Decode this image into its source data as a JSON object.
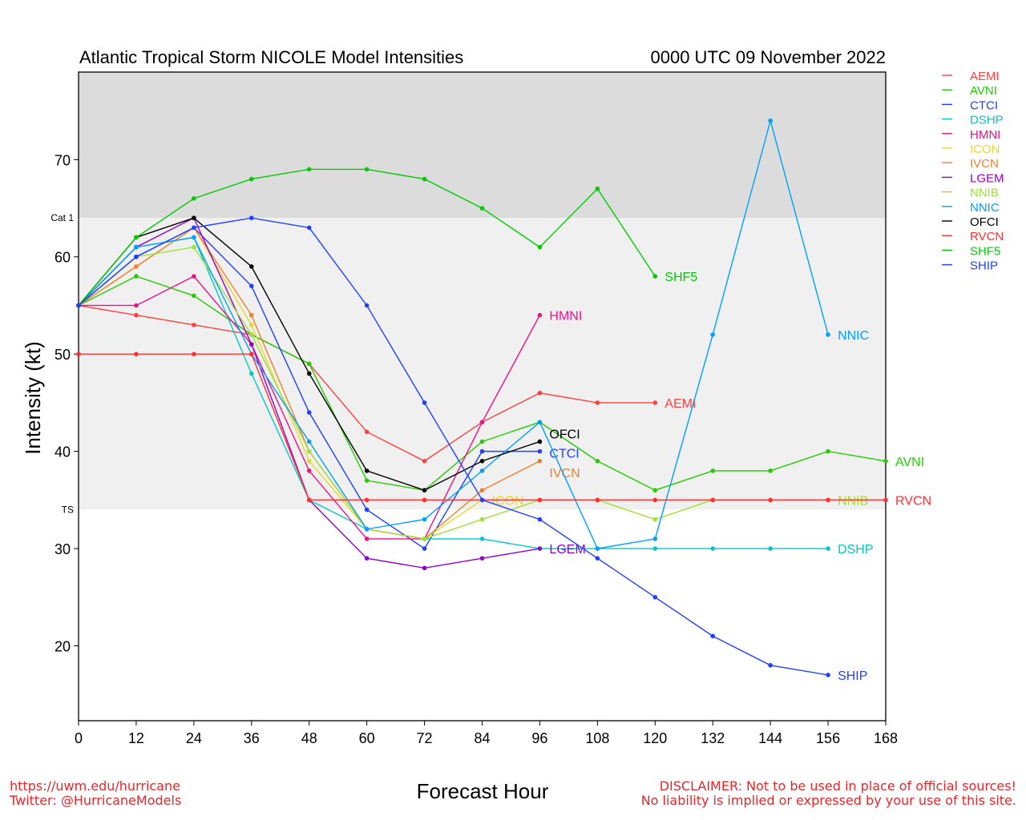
{
  "chart_data": {
    "type": "line",
    "title": "Atlantic Tropical Storm NICOLE Model Intensities",
    "subtitle": "0000 UTC 09 November 2022",
    "xlabel": "Forecast Hour",
    "ylabel": "Intensity (kt)",
    "xlim": [
      0,
      168
    ],
    "ylim": [
      12.3,
      79
    ],
    "xticks": [
      0,
      12,
      24,
      36,
      48,
      60,
      72,
      84,
      96,
      108,
      120,
      132,
      144,
      156,
      168
    ],
    "yticks": [
      20,
      30,
      40,
      50,
      60,
      70
    ],
    "bands": [
      {
        "label": "Cat 1",
        "from": 64,
        "to": 79,
        "color": "#dcdcdc"
      },
      {
        "label": "TS",
        "from": 34,
        "to": 64,
        "color": "#f0f0f0"
      }
    ],
    "legend_position": "right",
    "series": [
      {
        "name": "AEMI",
        "color": "#ff4040",
        "x": [
          0,
          12,
          24,
          36,
          48,
          60,
          72,
          84,
          96,
          108,
          120
        ],
        "y": [
          55,
          54,
          53,
          52,
          49,
          42,
          39,
          43,
          46,
          45,
          45
        ]
      },
      {
        "name": "AVNI",
        "color": "#22cc00",
        "x": [
          0,
          12,
          24,
          36,
          48,
          60,
          72,
          84,
          96,
          108,
          120,
          132,
          144,
          156,
          168
        ],
        "y": [
          55,
          58,
          56,
          52,
          49,
          37,
          36,
          41,
          43,
          39,
          36,
          38,
          38,
          40,
          39
        ]
      },
      {
        "name": "CTCI",
        "color": "#2040ff",
        "x": [
          0,
          12,
          24,
          36,
          48,
          60,
          72,
          84,
          96
        ],
        "y": [
          55,
          60,
          63,
          57,
          44,
          34,
          30,
          40,
          40
        ]
      },
      {
        "name": "DSHP",
        "color": "#00c8c8",
        "x": [
          0,
          12,
          24,
          36,
          48,
          60,
          72,
          84,
          96,
          108,
          120,
          132,
          144,
          156
        ],
        "y": [
          55,
          61,
          62,
          48,
          35,
          32,
          31,
          31,
          30,
          30,
          30,
          30,
          30,
          30
        ]
      },
      {
        "name": "HMNI",
        "color": "#ee1188",
        "x": [
          0,
          12,
          24,
          36,
          48,
          60,
          72,
          84,
          96
        ],
        "y": [
          55,
          55,
          58,
          51,
          38,
          31,
          31,
          43,
          54
        ]
      },
      {
        "name": "ICON",
        "color": "#e8d830",
        "x": [
          0,
          12,
          24,
          36,
          48,
          60,
          72,
          84
        ],
        "y": [
          55,
          59,
          63,
          53,
          39,
          32,
          31,
          35
        ]
      },
      {
        "name": "IVCN",
        "color": "#f08030",
        "x": [
          0,
          12,
          24,
          36,
          48,
          60,
          72,
          84,
          96
        ],
        "y": [
          55,
          59,
          63,
          54,
          40,
          32,
          31,
          36,
          39
        ]
      },
      {
        "name": "LGEM",
        "color": "#9900cc",
        "x": [
          0,
          12,
          24,
          36,
          48,
          60,
          72,
          84,
          96
        ],
        "y": [
          55,
          61,
          64,
          51,
          35,
          29,
          28,
          29,
          30
        ]
      },
      {
        "name": "NNIB",
        "color": "#a0e030",
        "x": [
          0,
          12,
          24,
          36,
          48,
          60,
          72,
          84,
          96,
          108,
          120,
          132,
          144,
          156
        ],
        "y": [
          55,
          60,
          61,
          52,
          40,
          32,
          31,
          33,
          35,
          35,
          33,
          35,
          35,
          35
        ]
      },
      {
        "name": "NNIC",
        "color": "#00a0ff",
        "x": [
          0,
          12,
          24,
          36,
          48,
          60,
          72,
          84,
          96,
          108,
          120,
          132,
          144,
          156
        ],
        "y": [
          55,
          61,
          62,
          50,
          41,
          32,
          33,
          38,
          43,
          30,
          31,
          52,
          74,
          52
        ]
      },
      {
        "name": "OFCI",
        "color": "#000000",
        "x": [
          0,
          12,
          24,
          36,
          48,
          60,
          72,
          84,
          96
        ],
        "y": [
          55,
          62,
          64,
          59,
          48,
          38,
          36,
          39,
          41
        ]
      },
      {
        "name": "RVCN",
        "color": "#ff3030",
        "x": [
          0,
          12,
          24,
          36,
          48,
          60,
          72,
          84,
          96,
          108,
          120,
          132,
          144,
          156,
          168
        ],
        "y": [
          50,
          50,
          50,
          50,
          35,
          35,
          35,
          35,
          35,
          35,
          35,
          35,
          35,
          35,
          35
        ]
      },
      {
        "name": "SHF5",
        "color": "#00cc00",
        "x": [
          0,
          12,
          24,
          36,
          48,
          60,
          72,
          84,
          96,
          108,
          120
        ],
        "y": [
          55,
          62,
          66,
          68,
          69,
          69,
          68,
          65,
          61,
          67,
          58
        ]
      },
      {
        "name": "SHIP",
        "color": "#2040ff",
        "x": [
          0,
          12,
          24,
          36,
          48,
          60,
          72,
          84,
          96,
          108,
          120,
          132,
          144,
          156
        ],
        "y": [
          55,
          60,
          63,
          64,
          63,
          55,
          45,
          35,
          33,
          29,
          25,
          21,
          18,
          17
        ]
      }
    ]
  },
  "footer": {
    "left_line1": "https://uwm.edu/hurricane",
    "left_line2": "Twitter: @HurricaneModels",
    "right_line1": "DISCLAIMER: Not to be used in place of official sources!",
    "right_line2": "No liability is implied or expressed by your use of this site."
  }
}
